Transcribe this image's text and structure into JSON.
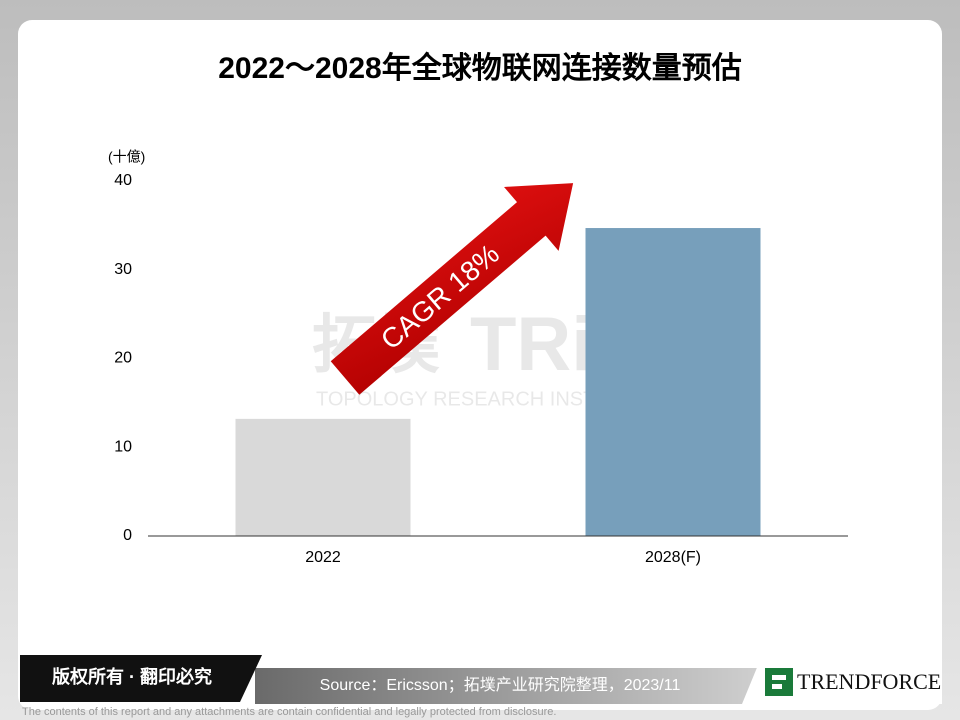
{
  "chart_data": {
    "type": "bar",
    "title": "2022～2028年全球物联网连接数量预估",
    "y_unit": "(十億)",
    "categories": [
      "2022",
      "2028(F)"
    ],
    "values": [
      13.2,
      34.7
    ],
    "colors": [
      "#d9d9d9",
      "#779fbb"
    ],
    "ylim": [
      0,
      40
    ],
    "yticks": [
      0,
      10,
      20,
      30,
      40
    ],
    "grid": false,
    "annotation": "CAGR 18%",
    "watermark": {
      "logo": "拓墣",
      "mark": "TRi",
      "name": "TOPOLOGY RESEARCH INSTITUTE"
    }
  },
  "footer": {
    "copyright": "版权所有 · 翻印必究",
    "source": "Source：Ericsson；拓墣产业研究院整理，2023/11",
    "brand": "TRENDFORCE",
    "disclaimer": "The contents of this report and any attachments are contain confidential and legally protected from disclosure."
  }
}
